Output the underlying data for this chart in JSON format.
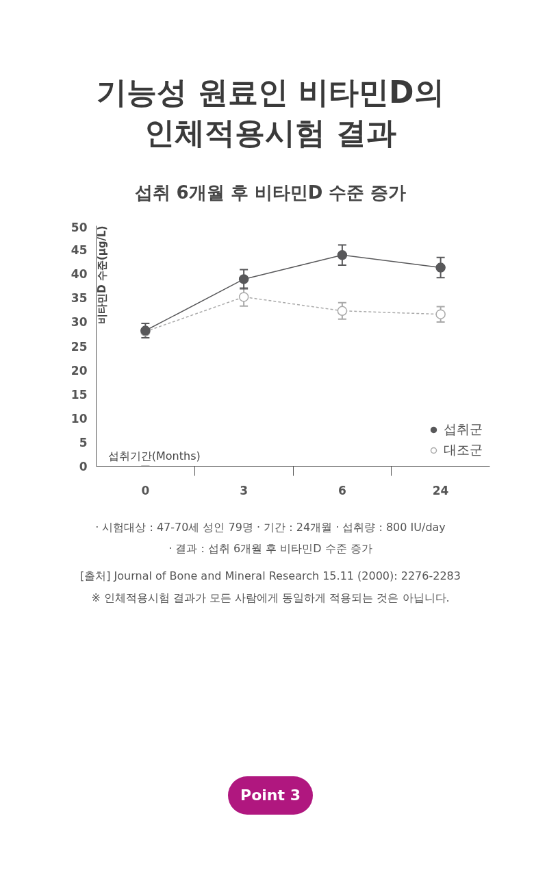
{
  "chart_data": {
    "type": "line",
    "title": "기능성 원료인 비타민D의\n인체적용시험 결과",
    "subtitle": "섭취 6개월 후 비타민D 수준 증가",
    "xlabel": "섭취기간(Months)",
    "ylabel": "비타민D 수준(μg/L)",
    "categories": [
      "0",
      "3",
      "6",
      "24"
    ],
    "series": [
      {
        "name": "섭취군",
        "color": "#58585a",
        "values": [
          28.2,
          38.9,
          43.9,
          41.3
        ],
        "errors": [
          1.5,
          2.0,
          2.1,
          2.1
        ],
        "line_style": "solid"
      },
      {
        "name": "대조군",
        "color": "#a9a9a9",
        "values": [
          28.0,
          35.2,
          32.3,
          31.6
        ],
        "errors": [
          null,
          1.9,
          1.7,
          1.6
        ],
        "line_style": "dashed"
      }
    ],
    "ylim": [
      0,
      50
    ],
    "yticks": [
      0,
      5,
      10,
      15,
      20,
      25,
      30,
      35,
      40,
      45,
      50
    ],
    "grid": false,
    "legend": "bottom right",
    "marker": "circle",
    "annotations": [
      "· 시험대상 : 47-70세 성인 79명   · 기간 : 24개월  · 섭취량 : 800 IU/day",
      "· 결과 : 섭취 6개월 후 비타민D 수준 증가",
      "[출처] Journal of Bone and Mineral Research 15.11 (2000): 2276-2283",
      "※ 인체적용시험 결과가 모든 사람에게 동일하게 적용되는 것은 아닙니다.",
      "Point 3"
    ]
  }
}
